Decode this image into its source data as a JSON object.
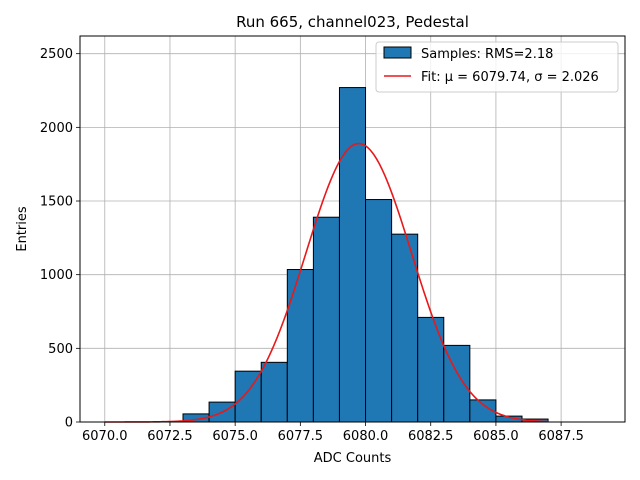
{
  "chart_data": {
    "type": "bar",
    "title": "Run 665, channel023, Pedestal",
    "xlabel": "ADC Counts",
    "ylabel": "Entries",
    "xlim": [
      6069.05,
      6089.95
    ],
    "ylim": [
      0,
      2620
    ],
    "xticks": [
      6070.0,
      6072.5,
      6075.0,
      6077.5,
      6080.0,
      6082.5,
      6085.0,
      6087.5
    ],
    "xtick_labels": [
      "6070.0",
      "6072.5",
      "6075.0",
      "6077.5",
      "6080.0",
      "6082.5",
      "6085.0",
      "6087.5"
    ],
    "yticks": [
      0,
      500,
      1000,
      1500,
      2000,
      2500
    ],
    "ytick_labels": [
      "0",
      "500",
      "1000",
      "1500",
      "2000",
      "2500"
    ],
    "grid": true,
    "legend_position": "top-right",
    "bin_width": 1,
    "bins": [
      {
        "left": 6073,
        "count": 55
      },
      {
        "left": 6074,
        "count": 135
      },
      {
        "left": 6075,
        "count": 345
      },
      {
        "left": 6076,
        "count": 405
      },
      {
        "left": 6077,
        "count": 1035
      },
      {
        "left": 6078,
        "count": 1390
      },
      {
        "left": 6079,
        "count": 2270
      },
      {
        "left": 6080,
        "count": 1510
      },
      {
        "left": 6081,
        "count": 1275
      },
      {
        "left": 6082,
        "count": 710
      },
      {
        "left": 6083,
        "count": 520
      },
      {
        "left": 6084,
        "count": 150
      },
      {
        "left": 6085,
        "count": 40
      },
      {
        "left": 6086,
        "count": 20
      }
    ],
    "fit": {
      "mu": 6079.74,
      "sigma": 2.026,
      "peak": 1890,
      "x_start": 6070.0,
      "x_end": 6087.0
    },
    "series": [
      {
        "name": "Samples: RMS=2.18",
        "kind": "histogram",
        "color": "#1f77b4"
      },
      {
        "name": "Fit: μ = 6079.74, σ = 2.026",
        "kind": "line",
        "color": "#e8191b"
      }
    ]
  }
}
